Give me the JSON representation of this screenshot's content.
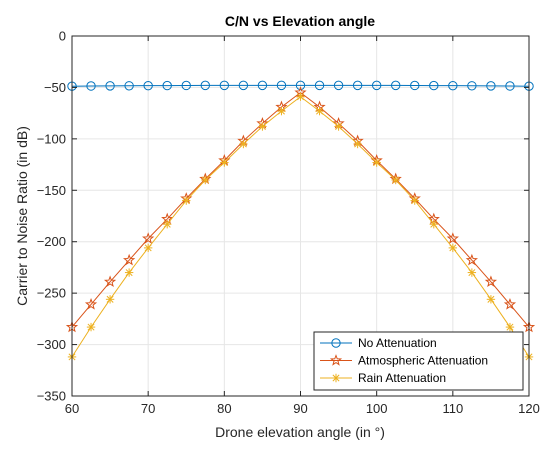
{
  "chart_data": {
    "type": "line",
    "title": "C/N vs Elevation angle",
    "xlabel": "Drone elevation angle (in °)",
    "ylabel": "Carrier to Noise Ratio (in dB)",
    "xlim": [
      60,
      120
    ],
    "ylim": [
      -350,
      0
    ],
    "xticks": [
      "60",
      "70",
      "80",
      "90",
      "100",
      "110",
      "120"
    ],
    "yticks": [
      "0",
      "-50",
      "-100",
      "-150",
      "-200",
      "-250",
      "-300",
      "-350"
    ],
    "grid": true,
    "legend_position": "bottom-right",
    "x": [
      60,
      62.5,
      65,
      67.5,
      70,
      72.5,
      75,
      77.5,
      80,
      82.5,
      85,
      87.5,
      90,
      92.5,
      95,
      97.5,
      100,
      102.5,
      105,
      107.5,
      110,
      112.5,
      115,
      117.5,
      120
    ],
    "series": [
      {
        "name": "No Attenuation",
        "color": "#0072BD",
        "marker": "circle",
        "values": [
          -48.8,
          -48.6,
          -48.5,
          -48.4,
          -48.3,
          -48.2,
          -48.1,
          -48.0,
          -48.0,
          -48.0,
          -48.0,
          -48.0,
          -48.0,
          -48.0,
          -48.0,
          -48.0,
          -48.0,
          -48.0,
          -48.1,
          -48.2,
          -48.3,
          -48.4,
          -48.5,
          -48.6,
          -48.8
        ]
      },
      {
        "name": "Atmospheric Attenuation",
        "color": "#D95319",
        "marker": "star",
        "values": [
          -283,
          -261,
          -239,
          -218,
          -197,
          -178,
          -158,
          -139,
          -121,
          -102,
          -85,
          -69,
          -55,
          -69,
          -85,
          -102,
          -121,
          -139,
          -158,
          -178,
          -197,
          -218,
          -239,
          -261,
          -283
        ]
      },
      {
        "name": "Rain Attenuation",
        "color": "#EDB120",
        "marker": "asterisk",
        "values": [
          -312,
          -283,
          -256,
          -230,
          -206,
          -183,
          -160,
          -140,
          -123,
          -105,
          -88,
          -73,
          -59,
          -73,
          -88,
          -105,
          -123,
          -140,
          -160,
          -183,
          -206,
          -230,
          -256,
          -283,
          -312
        ]
      }
    ]
  }
}
